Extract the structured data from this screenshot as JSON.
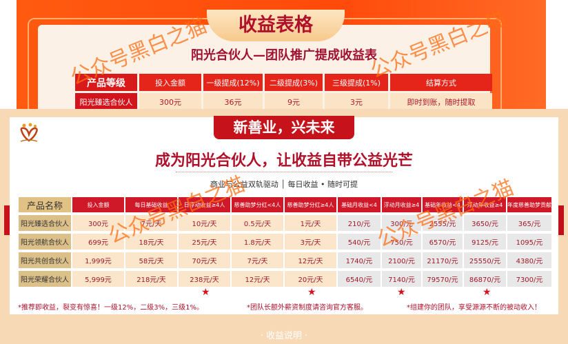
{
  "top": {
    "badge": "收益表格",
    "subtitle": "阳光合伙人—团队推广提成收益表",
    "headers": [
      "产品等级",
      "投入金额",
      "一级提成(12%)",
      "二级提成(3%)",
      "三级提成(1%)",
      "结算方式"
    ],
    "row": [
      "阳光臻选合伙人",
      "300元",
      "36元",
      "9元",
      "3元",
      "即时到账，随时提取"
    ]
  },
  "bottom": {
    "slogan": "新善业，兴未来",
    "headline": "成为阳光合伙人，让收益自带公益光芒",
    "tagline": "商业与公益双轨驱动 │ 每日收益 • 随时可提",
    "headers": [
      "产品名称",
      "投入金额",
      "每日基础收益",
      "日浮动收益≥4人",
      "慈善助梦分红<4人",
      "慈善助梦分红≥4人",
      "基础月收益<4",
      "浮动月收益≥4",
      "基础年收益<4",
      "浮动年收益≥4",
      "年度慈善助梦贡献"
    ],
    "rows": [
      [
        "阳光臻选合伙人",
        "300元",
        "7元/天",
        "10元/天",
        "0.5元/天",
        "1元/天",
        "210/元",
        "300/元",
        "2555/元",
        "3650/元",
        "365/元"
      ],
      [
        "阳光领航合伙人",
        "699元",
        "18元/天",
        "25元/天",
        "1.8元/天",
        "3元/天",
        "540/元",
        "750/元",
        "6570/元",
        "9125/元",
        "1095/元"
      ],
      [
        "阳光共创合伙人",
        "1,999元",
        "58元/天",
        "70元/天",
        "7元/天",
        "12元/天",
        "1740/元",
        "2100/元",
        "21170/元",
        "25550/元",
        "4380/元"
      ],
      [
        "阳光荣耀合伙人",
        "5,999元",
        "218元/天",
        "238元/天",
        "12元/天",
        "20元/天",
        "6540/元",
        "7140/元",
        "79570/元",
        "86870/元",
        "7300/元"
      ]
    ],
    "star": "★",
    "notes": [
      "*推荐即收益，裂变有惊喜！一级12%，二级3%，三级1%。",
      "*团队长额外薪资制度请咨询官方客服。",
      "*组建你的团队，享受源源不断的被动收入！"
    ],
    "footer": "· 收益说明 ·"
  },
  "watermark": "公众号黑白之猫",
  "colors": {
    "red": "#cf1828",
    "orange": "#ff5a10",
    "gold": "#dcc08a"
  }
}
